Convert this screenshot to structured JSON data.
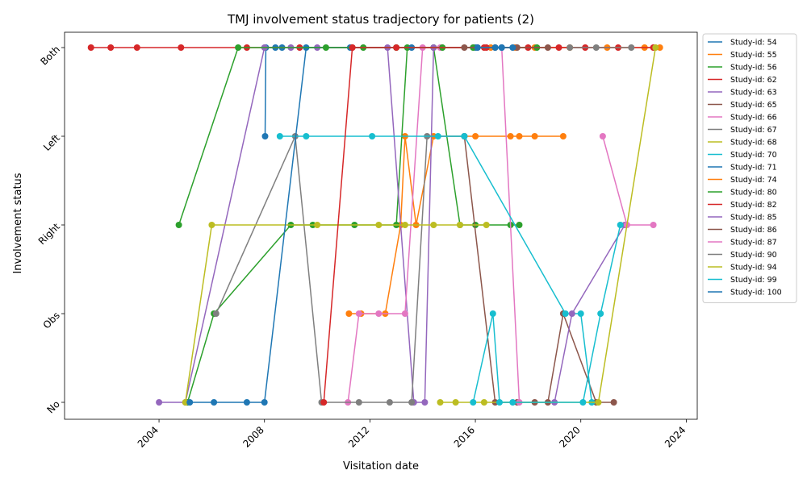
{
  "chart_data": {
    "type": "line",
    "title": "TMJ involvement status tradjectory for patients (2)",
    "xlabel": "Visitation date",
    "ylabel": "Involvement status",
    "categories": [
      "No",
      "Obs",
      "Right",
      "Left",
      "Both"
    ],
    "xlim": [
      "2000-06-01",
      "2024-06-01"
    ],
    "x_ticks": [
      "2004",
      "2008",
      "2012",
      "2016",
      "2020",
      "2024"
    ],
    "grid": false,
    "legend_position": "outside right, top",
    "series": [
      {
        "name": "Study-id: 54",
        "color": "#1f77b4",
        "points": [
          [
            "2008-01-10",
            "Left"
          ],
          [
            "2008-01-20",
            "Both"
          ],
          [
            "2008-06-01",
            "Both"
          ],
          [
            "2008-09-01",
            "Both"
          ]
        ]
      },
      {
        "name": "Study-id: 55",
        "color": "#ff7f0e",
        "points": [
          [
            "2011-03-15",
            "Obs"
          ],
          [
            "2011-09-01",
            "Obs"
          ],
          [
            "2012-08-01",
            "Obs"
          ],
          [
            "2013-03-01",
            "Right"
          ],
          [
            "2013-05-01",
            "Left"
          ],
          [
            "2013-10-01",
            "Right"
          ],
          [
            "2014-06-01",
            "Left"
          ],
          [
            "2016-01-01",
            "Left"
          ],
          [
            "2017-05-01",
            "Left"
          ],
          [
            "2017-09-01",
            "Left"
          ],
          [
            "2018-04-01",
            "Left"
          ],
          [
            "2019-05-01",
            "Left"
          ]
        ]
      },
      {
        "name": "Study-id: 56",
        "color": "#2ca02c",
        "points": [
          [
            "2005-02-01",
            "No"
          ],
          [
            "2006-02-01",
            "Obs"
          ],
          [
            "2009-01-01",
            "Right"
          ],
          [
            "2009-11-01",
            "Right"
          ],
          [
            "2011-06-01",
            "Right"
          ],
          [
            "2013-01-01",
            "Right"
          ],
          [
            "2013-06-01",
            "Both"
          ],
          [
            "2014-06-01",
            "Both"
          ],
          [
            "2015-06-01",
            "Right"
          ],
          [
            "2016-01-01",
            "Right"
          ],
          [
            "2017-05-01",
            "Right"
          ],
          [
            "2017-09-01",
            "Right"
          ]
        ]
      },
      {
        "name": "Study-id: 62",
        "color": "#d62728",
        "points": [
          [
            "2001-06-01",
            "Both"
          ],
          [
            "2002-03-01",
            "Both"
          ],
          [
            "2003-03-01",
            "Both"
          ],
          [
            "2004-11-01",
            "Both"
          ],
          [
            "2007-05-01",
            "Both"
          ],
          [
            "2009-05-01",
            "Both"
          ],
          [
            "2011-05-01",
            "Both"
          ],
          [
            "2016-05-01",
            "Both"
          ],
          [
            "2021-06-01",
            "Both"
          ]
        ]
      },
      {
        "name": "Study-id: 63",
        "color": "#9467bd",
        "points": [
          [
            "2004-01-01",
            "No"
          ],
          [
            "2005-01-01",
            "No"
          ],
          [
            "2008-01-01",
            "Both"
          ],
          [
            "2009-01-01",
            "Both"
          ],
          [
            "2010-01-01",
            "Both"
          ],
          [
            "2012-09-01",
            "Both"
          ],
          [
            "2013-09-01",
            "No"
          ],
          [
            "2014-02-01",
            "No"
          ],
          [
            "2014-06-01",
            "Both"
          ]
        ]
      },
      {
        "name": "Study-id: 65",
        "color": "#8c564b",
        "points": [
          [
            "2015-08-01",
            "Left"
          ],
          [
            "2016-10-01",
            "No"
          ],
          [
            "2017-08-01",
            "No"
          ],
          [
            "2018-04-01",
            "No"
          ],
          [
            "2018-10-01",
            "No"
          ],
          [
            "2019-05-01",
            "Obs"
          ],
          [
            "2020-08-01",
            "No"
          ],
          [
            "2021-04-01",
            "No"
          ]
        ]
      },
      {
        "name": "Study-id: 66",
        "color": "#e377c2",
        "points": [
          [
            "2011-03-01",
            "No"
          ],
          [
            "2011-08-01",
            "Obs"
          ],
          [
            "2012-05-01",
            "Obs"
          ],
          [
            "2013-05-01",
            "Obs"
          ],
          [
            "2014-01-01",
            "Both"
          ],
          [
            "2014-09-01",
            "Both"
          ],
          [
            "2016-02-01",
            "Both"
          ],
          [
            "2017-01-01",
            "Both"
          ],
          [
            "2017-09-01",
            "No"
          ]
        ]
      },
      {
        "name": "Study-id: 67",
        "color": "#7f7f7f",
        "points": [
          [
            "2006-03-01",
            "Obs"
          ],
          [
            "2009-03-01",
            "Left"
          ],
          [
            "2010-03-01",
            "No"
          ],
          [
            "2011-08-01",
            "No"
          ],
          [
            "2012-10-01",
            "No"
          ],
          [
            "2013-08-01",
            "No"
          ],
          [
            "2014-03-01",
            "Left"
          ],
          [
            "2015-08-01",
            "Left"
          ]
        ]
      },
      {
        "name": "Study-id: 68",
        "color": "#bcbd22",
        "points": [
          [
            "2005-01-01",
            "No"
          ],
          [
            "2006-01-01",
            "Right"
          ],
          [
            "2010-01-01",
            "Right"
          ],
          [
            "2012-05-01",
            "Right"
          ],
          [
            "2013-05-01",
            "Right"
          ],
          [
            "2014-06-01",
            "Right"
          ],
          [
            "2015-06-01",
            "Right"
          ],
          [
            "2016-06-01",
            "Right"
          ]
        ]
      },
      {
        "name": "Study-id: 70",
        "color": "#17becf",
        "points": [
          [
            "2008-08-01",
            "Left"
          ],
          [
            "2009-08-01",
            "Left"
          ],
          [
            "2012-02-01",
            "Left"
          ],
          [
            "2014-08-01",
            "Left"
          ],
          [
            "2015-08-01",
            "Left"
          ],
          [
            "2019-06-01",
            "Obs"
          ],
          [
            "2020-01-01",
            "Obs"
          ],
          [
            "2020-06-01",
            "No"
          ]
        ]
      },
      {
        "name": "Study-id: 71",
        "color": "#1f77b4",
        "points": [
          [
            "2005-03-01",
            "No"
          ],
          [
            "2006-02-01",
            "No"
          ],
          [
            "2007-05-01",
            "No"
          ],
          [
            "2008-01-01",
            "No"
          ],
          [
            "2009-08-01",
            "Both"
          ],
          [
            "2011-04-01",
            "Both"
          ],
          [
            "2013-08-01",
            "Both"
          ],
          [
            "2016-01-01",
            "Both"
          ],
          [
            "2017-01-01",
            "Both"
          ]
        ]
      },
      {
        "name": "Study-id: 74",
        "color": "#ff7f0e",
        "points": [
          [
            "2016-08-01",
            "Both"
          ],
          [
            "2017-07-01",
            "Both"
          ],
          [
            "2018-04-01",
            "Both"
          ],
          [
            "2019-08-01",
            "Both"
          ],
          [
            "2021-01-01",
            "Both"
          ],
          [
            "2022-06-01",
            "Both"
          ],
          [
            "2023-01-01",
            "Both"
          ]
        ]
      },
      {
        "name": "Study-id: 80",
        "color": "#2ca02c",
        "points": [
          [
            "2004-10-01",
            "Right"
          ],
          [
            "2007-01-01",
            "Both"
          ],
          [
            "2010-05-01",
            "Both"
          ],
          [
            "2011-10-01",
            "Both"
          ],
          [
            "2013-01-01",
            "Both"
          ],
          [
            "2014-10-01",
            "Both"
          ],
          [
            "2015-12-01",
            "Both"
          ],
          [
            "2018-05-01",
            "Both"
          ]
        ]
      },
      {
        "name": "Study-id: 82",
        "color": "#d62728",
        "points": [
          [
            "2010-04-01",
            "No"
          ],
          [
            "2011-05-01",
            "Both"
          ],
          [
            "2013-01-01",
            "Both"
          ],
          [
            "2016-06-01",
            "Both"
          ],
          [
            "2018-01-01",
            "Both"
          ],
          [
            "2019-03-01",
            "Both"
          ],
          [
            "2020-03-01",
            "Both"
          ],
          [
            "2022-10-01",
            "Both"
          ]
        ]
      },
      {
        "name": "Study-id: 85",
        "color": "#9467bd",
        "points": [
          [
            "2019-01-01",
            "No"
          ],
          [
            "2019-09-01",
            "Obs"
          ],
          [
            "2021-09-01",
            "Right"
          ]
        ]
      },
      {
        "name": "Study-id: 86",
        "color": "#8c564b",
        "points": [
          [
            "2015-08-01",
            "Both"
          ],
          [
            "2016-10-01",
            "Both"
          ],
          [
            "2017-08-01",
            "Both"
          ],
          [
            "2018-10-01",
            "Both"
          ]
        ]
      },
      {
        "name": "Study-id: 87",
        "color": "#e377c2",
        "points": [
          [
            "2020-11-01",
            "Left"
          ],
          [
            "2021-10-01",
            "Right"
          ],
          [
            "2022-10-01",
            "Right"
          ]
        ]
      },
      {
        "name": "Study-id: 90",
        "color": "#7f7f7f",
        "points": [
          [
            "2019-08-01",
            "Both"
          ],
          [
            "2020-08-01",
            "Both"
          ],
          [
            "2021-12-01",
            "Both"
          ]
        ]
      },
      {
        "name": "Study-id: 94",
        "color": "#bcbd22",
        "points": [
          [
            "2014-09-01",
            "No"
          ],
          [
            "2015-04-01",
            "No"
          ],
          [
            "2016-05-01",
            "No"
          ],
          [
            "2020-09-01",
            "No"
          ],
          [
            "2022-11-01",
            "Both"
          ]
        ]
      },
      {
        "name": "Study-id: 99",
        "color": "#17becf",
        "points": [
          [
            "2015-12-01",
            "No"
          ],
          [
            "2016-09-01",
            "Obs"
          ],
          [
            "2016-12-01",
            "No"
          ],
          [
            "2017-06-01",
            "No"
          ],
          [
            "2020-02-01",
            "No"
          ],
          [
            "2020-10-01",
            "Obs"
          ],
          [
            "2021-07-01",
            "Right"
          ]
        ]
      },
      {
        "name": "Study-id: 100",
        "color": "#1f77b4",
        "points": [
          [
            "2016-02-01",
            "Both"
          ],
          [
            "2016-10-01",
            "Both"
          ],
          [
            "2017-01-01",
            "Both"
          ],
          [
            "2017-06-01",
            "Both"
          ]
        ]
      }
    ]
  }
}
